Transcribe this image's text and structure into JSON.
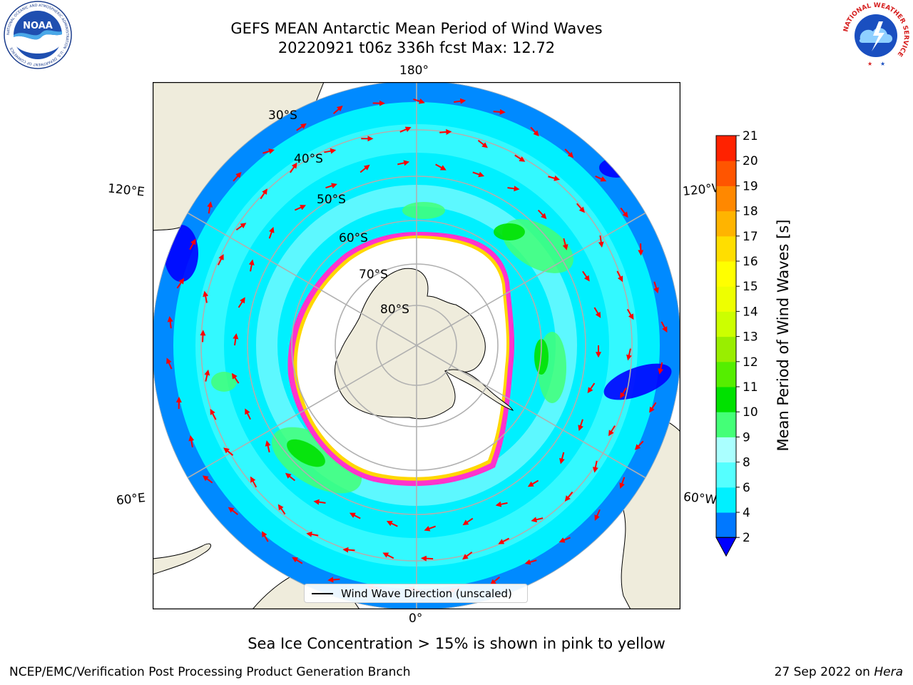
{
  "header": {
    "title_line1": "GEFS MEAN Antarctic Mean Period of Wind Waves",
    "title_line2": "20220921 t06z 336h fcst   Max: 12.72"
  },
  "logos": {
    "noaa_text": "NOAA",
    "noaa_ring": "NATIONAL OCEANIC AND ATMOSPHERIC ADMINISTRATION · U.S. DEPARTMENT OF COMMERCE",
    "nws_ring": "NATIONAL WEATHER SERVICE"
  },
  "map": {
    "projection": "south-polar-stereographic",
    "lon_labels": {
      "top": "180°",
      "bottom": "0°",
      "upper_left": "120°E",
      "upper_right": "120°W",
      "lower_left": "60°E",
      "lower_right": "60°W"
    },
    "lat_labels": [
      "30°S",
      "40°S",
      "50°S",
      "60°S",
      "70°S",
      "80°S"
    ],
    "colors": {
      "land": "#efecdc",
      "ice": "#ffffff",
      "ice_edge": "#ff33cc",
      "ice_edge_inner": "#ffd700",
      "arrow": "#ff0000",
      "grid": "#b0b0b0"
    }
  },
  "legend": {
    "label": "Wind Wave Direction (unscaled)"
  },
  "colorbar": {
    "label": "Mean Period of Wind Waves [s]",
    "ticks": [
      "2",
      "4",
      "6",
      "8",
      "9",
      "10",
      "11",
      "12",
      "13",
      "14",
      "15",
      "16",
      "17",
      "18",
      "19",
      "20",
      "21"
    ],
    "colors": [
      "#0078ff",
      "#00f0ff",
      "#55ffff",
      "#aaffff",
      "#44ff77",
      "#00e100",
      "#55ee00",
      "#99ee00",
      "#ccff00",
      "#eeff00",
      "#ffff00",
      "#ffde00",
      "#ffb400",
      "#ff8800",
      "#ff5500",
      "#ff2200"
    ],
    "under_color": "#0000ff"
  },
  "caption": "Sea Ice Concentration > 15% is shown in pink to yellow",
  "footer": {
    "left": "NCEP/EMC/Verification Post Processing Product Generation Branch",
    "date": "27 Sep 2022 on ",
    "host": "Hera"
  }
}
